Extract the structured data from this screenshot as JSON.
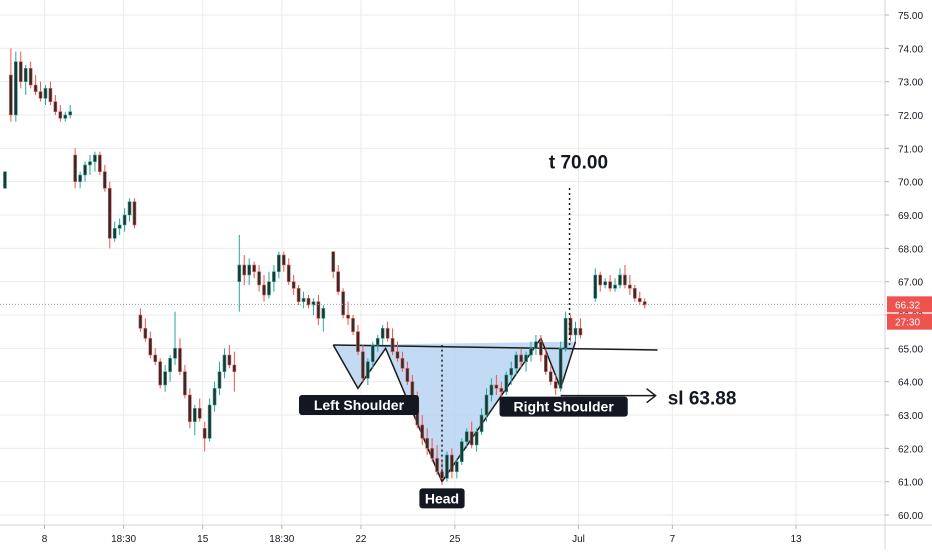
{
  "chart_data": {
    "type": "candlestick",
    "title": "",
    "colors": {
      "up": "#26a69a",
      "down": "#ef5350",
      "candle_body": "#26322f",
      "pattern_fill": "#b7d4f1",
      "grid": "#ebebeb",
      "price_line": "#9aa0a6",
      "axis_text": "#131722"
    },
    "y_axis": {
      "ylim": [
        59.7,
        75.45
      ],
      "tick_labels": [
        "75.00",
        "74.00",
        "73.00",
        "72.00",
        "71.00",
        "70.00",
        "69.00",
        "68.00",
        "67.00",
        "66.00",
        "65.00",
        "64.00",
        "63.00",
        "62.00",
        "61.00",
        "60.00"
      ],
      "tick_values": [
        75,
        74,
        73,
        72,
        71,
        70,
        69,
        68,
        67,
        66,
        65,
        64,
        63,
        62,
        61,
        60
      ]
    },
    "x_axis": {
      "xlim": [
        -0.05,
        8.9
      ],
      "tick_labels": [
        "8",
        "18:30",
        "15",
        "18:30",
        "22",
        "25",
        "Jul",
        "7",
        "13"
      ],
      "tick_values": [
        0.4,
        1.2,
        2.0,
        2.8,
        3.6,
        4.55,
        5.8,
        6.75,
        8.0
      ]
    },
    "current_price": {
      "value": 66.32,
      "label": "66.32"
    },
    "countdown": {
      "label": "27:30",
      "value": 65.8
    },
    "candles": [
      [
        0.0,
        69.8,
        70.3,
        69.8,
        70.3
      ],
      [
        0.06,
        73.2,
        74.0,
        71.8,
        72.0
      ],
      [
        0.11,
        72.0,
        73.9,
        71.8,
        73.6
      ],
      [
        0.16,
        73.6,
        73.9,
        72.8,
        73.0
      ],
      [
        0.21,
        73.0,
        73.5,
        72.6,
        73.4
      ],
      [
        0.26,
        73.4,
        73.6,
        72.8,
        72.9
      ],
      [
        0.31,
        72.9,
        73.2,
        72.6,
        72.7
      ],
      [
        0.36,
        72.7,
        73.0,
        72.4,
        72.5
      ],
      [
        0.41,
        72.5,
        72.9,
        72.3,
        72.8
      ],
      [
        0.46,
        72.8,
        73.0,
        72.3,
        72.4
      ],
      [
        0.51,
        72.4,
        72.6,
        72.0,
        72.1
      ],
      [
        0.56,
        72.1,
        72.3,
        71.8,
        71.9
      ],
      [
        0.61,
        71.9,
        72.1,
        71.8,
        72.0
      ],
      [
        0.66,
        72.0,
        72.3,
        71.9,
        72.1
      ],
      [
        0.71,
        70.8,
        71.0,
        69.8,
        70.0
      ],
      [
        0.76,
        70.0,
        70.3,
        69.8,
        70.2
      ],
      [
        0.81,
        70.2,
        70.6,
        70.0,
        70.5
      ],
      [
        0.86,
        70.5,
        70.8,
        70.2,
        70.6
      ],
      [
        0.91,
        70.6,
        70.9,
        70.3,
        70.8
      ],
      [
        0.96,
        70.8,
        70.9,
        70.2,
        70.3
      ],
      [
        1.01,
        70.3,
        70.5,
        69.7,
        69.8
      ],
      [
        1.06,
        69.8,
        70.0,
        68.0,
        68.3
      ],
      [
        1.11,
        68.3,
        68.8,
        68.2,
        68.6
      ],
      [
        1.16,
        68.6,
        68.9,
        68.4,
        68.7
      ],
      [
        1.21,
        68.7,
        69.2,
        68.5,
        69.0
      ],
      [
        1.26,
        69.0,
        69.5,
        68.8,
        69.4
      ],
      [
        1.31,
        69.4,
        69.5,
        68.6,
        68.7
      ],
      [
        1.37,
        66.0,
        66.2,
        65.5,
        65.6
      ],
      [
        1.42,
        65.6,
        65.9,
        65.2,
        65.3
      ],
      [
        1.47,
        65.3,
        65.5,
        64.7,
        64.8
      ],
      [
        1.52,
        64.8,
        65.0,
        64.5,
        64.6
      ],
      [
        1.57,
        64.6,
        64.7,
        63.8,
        63.9
      ],
      [
        1.62,
        63.9,
        64.5,
        63.7,
        64.3
      ],
      [
        1.67,
        64.3,
        64.8,
        64.0,
        64.7
      ],
      [
        1.72,
        64.7,
        66.1,
        64.5,
        65.0
      ],
      [
        1.77,
        65.0,
        65.3,
        64.2,
        64.3
      ],
      [
        1.82,
        64.3,
        64.5,
        63.5,
        63.6
      ],
      [
        1.87,
        63.6,
        63.8,
        62.6,
        62.8
      ],
      [
        1.92,
        62.8,
        63.3,
        62.4,
        63.2
      ],
      [
        1.97,
        63.2,
        63.5,
        62.8,
        62.9
      ],
      [
        2.02,
        62.6,
        62.8,
        61.9,
        62.3
      ],
      [
        2.07,
        62.3,
        63.5,
        62.2,
        63.3
      ],
      [
        2.12,
        63.3,
        64.0,
        63.1,
        63.8
      ],
      [
        2.17,
        63.8,
        64.6,
        63.6,
        64.3
      ],
      [
        2.22,
        64.3,
        65.0,
        64.1,
        64.8
      ],
      [
        2.27,
        64.8,
        65.1,
        64.4,
        64.5
      ],
      [
        2.32,
        64.5,
        64.9,
        63.7,
        64.3
      ],
      [
        2.37,
        67.0,
        68.4,
        66.1,
        67.5
      ],
      [
        2.42,
        67.5,
        67.8,
        66.9,
        67.2
      ],
      [
        2.47,
        67.2,
        67.7,
        66.9,
        67.5
      ],
      [
        2.52,
        67.5,
        67.6,
        67.1,
        67.3
      ],
      [
        2.57,
        67.3,
        67.5,
        66.7,
        66.9
      ],
      [
        2.62,
        66.9,
        67.2,
        66.4,
        66.6
      ],
      [
        2.67,
        66.6,
        67.3,
        66.5,
        67.0
      ],
      [
        2.72,
        67.0,
        67.5,
        66.7,
        67.3
      ],
      [
        2.77,
        67.3,
        67.9,
        67.1,
        67.8
      ],
      [
        2.82,
        67.8,
        67.9,
        67.3,
        67.5
      ],
      [
        2.87,
        67.5,
        67.7,
        66.9,
        67.0
      ],
      [
        2.92,
        67.0,
        67.2,
        66.6,
        66.8
      ],
      [
        2.97,
        66.8,
        66.9,
        66.3,
        66.4
      ],
      [
        3.02,
        66.4,
        66.7,
        66.2,
        66.5
      ],
      [
        3.07,
        66.5,
        66.6,
        66.2,
        66.3
      ],
      [
        3.12,
        66.3,
        66.5,
        66.0,
        66.4
      ],
      [
        3.17,
        66.4,
        66.6,
        65.7,
        65.9
      ],
      [
        3.22,
        65.9,
        66.3,
        65.5,
        66.2
      ],
      [
        3.32,
        67.9,
        67.9,
        67.1,
        67.3
      ],
      [
        3.37,
        67.3,
        67.5,
        66.6,
        66.7
      ],
      [
        3.42,
        66.7,
        66.8,
        65.9,
        66.0
      ],
      [
        3.47,
        66.0,
        66.4,
        65.7,
        65.9
      ],
      [
        3.52,
        65.9,
        66.0,
        65.4,
        65.5
      ],
      [
        3.57,
        65.5,
        65.7,
        64.8,
        64.9
      ],
      [
        3.62,
        64.9,
        65.1,
        64.0,
        64.1
      ],
      [
        3.67,
        64.1,
        64.7,
        63.9,
        64.6
      ],
      [
        3.72,
        64.6,
        65.2,
        64.4,
        65.1
      ],
      [
        3.77,
        65.1,
        65.4,
        64.9,
        65.3
      ],
      [
        3.82,
        65.3,
        65.7,
        65.1,
        65.6
      ],
      [
        3.87,
        65.6,
        65.8,
        65.2,
        65.3
      ],
      [
        3.92,
        65.3,
        65.6,
        64.8,
        64.9
      ],
      [
        3.97,
        64.9,
        65.2,
        64.6,
        64.7
      ],
      [
        4.02,
        64.7,
        64.9,
        64.3,
        64.4
      ],
      [
        4.07,
        64.4,
        64.6,
        63.9,
        64.0
      ],
      [
        4.12,
        64.0,
        64.2,
        63.4,
        63.5
      ],
      [
        4.17,
        63.5,
        63.7,
        62.6,
        62.7
      ],
      [
        4.22,
        62.7,
        63.0,
        62.1,
        62.3
      ],
      [
        4.27,
        62.3,
        62.6,
        61.8,
        62.0
      ],
      [
        4.32,
        62.0,
        62.3,
        61.6,
        61.7
      ],
      [
        4.37,
        61.7,
        62.1,
        61.2,
        61.3
      ],
      [
        4.42,
        61.3,
        61.6,
        60.9,
        61.1
      ],
      [
        4.47,
        61.1,
        61.9,
        61.0,
        61.8
      ],
      [
        4.52,
        61.8,
        62.0,
        61.1,
        61.3
      ],
      [
        4.57,
        61.3,
        61.7,
        61.1,
        61.6
      ],
      [
        4.62,
        61.6,
        62.3,
        61.5,
        62.2
      ],
      [
        4.67,
        62.2,
        62.6,
        62.0,
        62.5
      ],
      [
        4.72,
        62.5,
        62.8,
        62.0,
        62.1
      ],
      [
        4.77,
        62.1,
        62.6,
        61.9,
        62.5
      ],
      [
        4.82,
        62.5,
        63.2,
        62.4,
        63.0
      ],
      [
        4.87,
        63.0,
        63.8,
        62.8,
        63.6
      ],
      [
        4.92,
        63.6,
        64.1,
        63.4,
        63.9
      ],
      [
        4.97,
        63.9,
        64.2,
        63.6,
        63.8
      ],
      [
        5.02,
        63.8,
        64.0,
        63.5,
        63.7
      ],
      [
        5.07,
        63.7,
        64.3,
        63.6,
        64.2
      ],
      [
        5.12,
        64.2,
        64.6,
        63.9,
        64.4
      ],
      [
        5.17,
        64.4,
        64.9,
        64.2,
        64.8
      ],
      [
        5.22,
        64.8,
        65.0,
        64.4,
        64.6
      ],
      [
        5.27,
        64.6,
        64.9,
        64.3,
        64.8
      ],
      [
        5.32,
        64.8,
        65.2,
        64.6,
        65.0
      ],
      [
        5.37,
        65.0,
        65.4,
        64.8,
        65.2
      ],
      [
        5.42,
        65.2,
        65.4,
        64.6,
        64.8
      ],
      [
        5.47,
        64.8,
        65.0,
        64.2,
        64.3
      ],
      [
        5.52,
        64.3,
        64.5,
        63.9,
        64.0
      ],
      [
        5.57,
        64.0,
        64.2,
        63.6,
        63.8
      ],
      [
        5.62,
        63.8,
        65.2,
        63.7,
        65.0
      ],
      [
        5.67,
        65.0,
        66.1,
        64.9,
        65.9
      ],
      [
        5.72,
        65.9,
        66.0,
        65.2,
        65.4
      ],
      [
        5.77,
        65.4,
        65.8,
        65.2,
        65.6
      ],
      [
        5.82,
        65.6,
        65.9,
        65.3,
        65.4
      ],
      [
        5.97,
        66.5,
        67.4,
        66.4,
        67.2
      ],
      [
        6.02,
        67.2,
        67.3,
        66.7,
        66.9
      ],
      [
        6.07,
        66.9,
        67.1,
        66.8,
        67.0
      ],
      [
        6.12,
        67.0,
        67.2,
        66.7,
        66.8
      ],
      [
        6.17,
        66.8,
        67.1,
        66.7,
        66.9
      ],
      [
        6.22,
        66.9,
        67.4,
        66.8,
        67.2
      ],
      [
        6.27,
        67.2,
        67.5,
        66.8,
        66.9
      ],
      [
        6.32,
        66.9,
        67.2,
        66.6,
        66.8
      ],
      [
        6.37,
        66.8,
        66.9,
        66.4,
        66.5
      ],
      [
        6.42,
        66.5,
        66.7,
        66.3,
        66.4
      ],
      [
        6.47,
        66.4,
        66.5,
        66.2,
        66.3
      ]
    ],
    "pattern": {
      "name": "inverse head and shoulders",
      "points": [
        [
          3.32,
          65.1
        ],
        [
          3.57,
          63.8
        ],
        [
          3.85,
          65.0
        ],
        [
          4.42,
          61.0
        ],
        [
          5.42,
          65.3
        ],
        [
          5.62,
          63.8
        ],
        [
          5.77,
          65.2
        ]
      ],
      "neckline": [
        [
          3.32,
          65.1
        ],
        [
          6.6,
          64.95
        ]
      ]
    },
    "annotations": [
      {
        "id": "left_shoulder",
        "text": "Left Shoulder",
        "x": 3.58,
        "y": 63.3
      },
      {
        "id": "head",
        "text": "Head",
        "x": 4.42,
        "y": 60.5
      },
      {
        "id": "right_shoulder",
        "text": "Right Shoulder",
        "x": 5.65,
        "y": 63.25
      },
      {
        "id": "target",
        "text": "t 70.00",
        "x": 5.8,
        "y": 70.4
      },
      {
        "id": "stop_loss",
        "text": "sl 63.88",
        "x": 7.05,
        "y": 63.5
      }
    ],
    "target_line": {
      "x": 5.71,
      "y0": 65.1,
      "y1": 69.9
    },
    "head_line": {
      "x": 4.42,
      "y0": 61.0,
      "y1": 65.1
    },
    "sl_arrow": {
      "x0": 5.62,
      "x1": 6.58,
      "y": 63.58
    }
  }
}
